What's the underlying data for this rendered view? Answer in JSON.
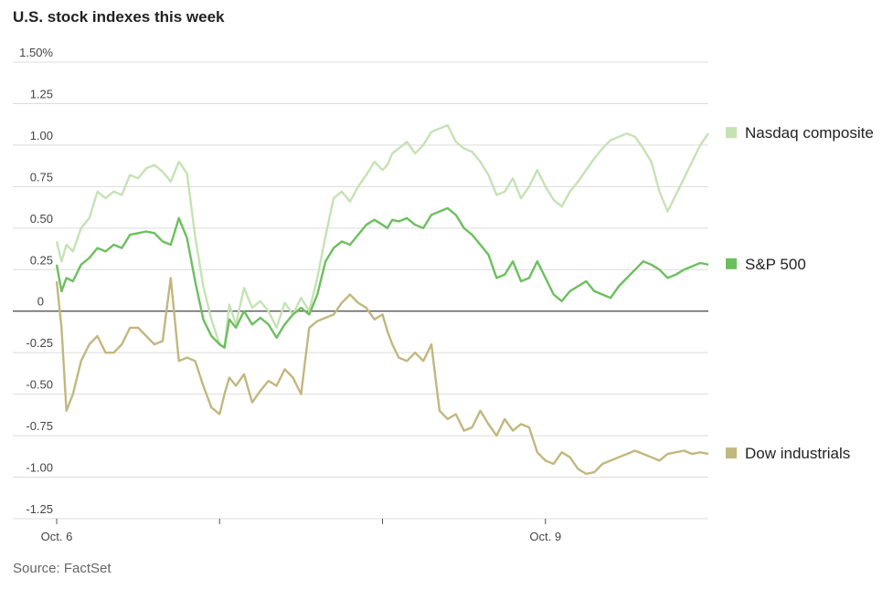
{
  "chart_data": {
    "type": "line",
    "title": "U.S. stock indexes this week",
    "source": "Source: FactSet",
    "xlabel": "",
    "ylabel": "",
    "ylim": [
      -1.25,
      1.5
    ],
    "y_ticks": [
      {
        "value": 1.5,
        "label": "1.50%"
      },
      {
        "value": 1.25,
        "label": "1.25"
      },
      {
        "value": 1.0,
        "label": "1.00"
      },
      {
        "value": 0.75,
        "label": "0.75"
      },
      {
        "value": 0.5,
        "label": "0.50"
      },
      {
        "value": 0.25,
        "label": "0.25"
      },
      {
        "value": 0,
        "label": "0"
      },
      {
        "value": -0.25,
        "label": "-0.25"
      },
      {
        "value": -0.5,
        "label": "-0.50"
      },
      {
        "value": -0.75,
        "label": "-0.75"
      },
      {
        "value": -1.0,
        "label": "-1.00"
      },
      {
        "value": -1.25,
        "label": "-1.25"
      }
    ],
    "x_ticks": [
      {
        "value": 0,
        "label": "Oct. 6"
      },
      {
        "value": 1,
        "label": ""
      },
      {
        "value": 2,
        "label": ""
      },
      {
        "value": 3,
        "label": "Oct. 9"
      }
    ],
    "xlim": [
      0,
      4
    ],
    "series": [
      {
        "name": "Nasdaq composite",
        "color": "#c5e2b5",
        "x": [
          0,
          0.03,
          0.06,
          0.1,
          0.15,
          0.2,
          0.25,
          0.3,
          0.35,
          0.4,
          0.45,
          0.5,
          0.55,
          0.6,
          0.65,
          0.7,
          0.75,
          0.8,
          0.85,
          0.9,
          0.95,
          1.0,
          1.03,
          1.06,
          1.1,
          1.15,
          1.2,
          1.25,
          1.3,
          1.35,
          1.4,
          1.45,
          1.5,
          1.55,
          1.6,
          1.65,
          1.7,
          1.75,
          1.8,
          1.85,
          1.9,
          1.95,
          2.0,
          2.03,
          2.06,
          2.1,
          2.15,
          2.2,
          2.25,
          2.3,
          2.35,
          2.4,
          2.45,
          2.5,
          2.55,
          2.6,
          2.65,
          2.7,
          2.75,
          2.8,
          2.85,
          2.9,
          2.95,
          3.0,
          3.05,
          3.1,
          3.15,
          3.2,
          3.25,
          3.3,
          3.35,
          3.4,
          3.45,
          3.5,
          3.55,
          3.6,
          3.65,
          3.7,
          3.75,
          3.8,
          3.85,
          3.9,
          3.95,
          4.0
        ],
        "y": [
          0.42,
          0.3,
          0.4,
          0.36,
          0.5,
          0.56,
          0.72,
          0.68,
          0.72,
          0.7,
          0.82,
          0.8,
          0.86,
          0.88,
          0.84,
          0.78,
          0.9,
          0.83,
          0.45,
          0.15,
          -0.05,
          -0.2,
          -0.22,
          0.04,
          -0.08,
          0.14,
          0.02,
          0.06,
          0.0,
          -0.1,
          0.05,
          -0.02,
          0.08,
          0.0,
          0.2,
          0.45,
          0.68,
          0.72,
          0.66,
          0.75,
          0.82,
          0.9,
          0.85,
          0.88,
          0.95,
          0.98,
          1.02,
          0.95,
          1.0,
          1.08,
          1.1,
          1.12,
          1.02,
          0.98,
          0.96,
          0.9,
          0.82,
          0.7,
          0.72,
          0.8,
          0.68,
          0.75,
          0.85,
          0.75,
          0.67,
          0.63,
          0.72,
          0.78,
          0.85,
          0.92,
          0.98,
          1.03,
          1.05,
          1.07,
          1.05,
          0.98,
          0.9,
          0.72,
          0.6,
          0.7,
          0.8,
          0.9,
          1.0,
          1.07
        ]
      },
      {
        "name": "S&P 500",
        "color": "#6cbf5e",
        "x": [
          0,
          0.03,
          0.06,
          0.1,
          0.15,
          0.2,
          0.25,
          0.3,
          0.35,
          0.4,
          0.45,
          0.5,
          0.55,
          0.6,
          0.65,
          0.7,
          0.75,
          0.8,
          0.85,
          0.9,
          0.95,
          1.0,
          1.03,
          1.06,
          1.1,
          1.15,
          1.2,
          1.25,
          1.3,
          1.35,
          1.4,
          1.45,
          1.5,
          1.55,
          1.6,
          1.65,
          1.7,
          1.75,
          1.8,
          1.85,
          1.9,
          1.95,
          2.0,
          2.03,
          2.06,
          2.1,
          2.15,
          2.2,
          2.25,
          2.3,
          2.35,
          2.4,
          2.45,
          2.5,
          2.55,
          2.6,
          2.65,
          2.7,
          2.75,
          2.8,
          2.85,
          2.9,
          2.95,
          3.0,
          3.05,
          3.1,
          3.15,
          3.2,
          3.25,
          3.3,
          3.35,
          3.4,
          3.45,
          3.5,
          3.55,
          3.6,
          3.65,
          3.7,
          3.75,
          3.8,
          3.85,
          3.9,
          3.95,
          4.0
        ],
        "y": [
          0.28,
          0.12,
          0.2,
          0.18,
          0.28,
          0.32,
          0.38,
          0.36,
          0.4,
          0.38,
          0.46,
          0.47,
          0.48,
          0.47,
          0.42,
          0.4,
          0.56,
          0.44,
          0.18,
          -0.05,
          -0.15,
          -0.2,
          -0.22,
          -0.05,
          -0.1,
          0.0,
          -0.08,
          -0.04,
          -0.08,
          -0.16,
          -0.08,
          -0.02,
          0.02,
          -0.02,
          0.1,
          0.3,
          0.38,
          0.42,
          0.4,
          0.46,
          0.52,
          0.55,
          0.52,
          0.5,
          0.55,
          0.54,
          0.56,
          0.52,
          0.5,
          0.58,
          0.6,
          0.62,
          0.58,
          0.5,
          0.46,
          0.4,
          0.34,
          0.2,
          0.22,
          0.3,
          0.18,
          0.2,
          0.3,
          0.2,
          0.1,
          0.06,
          0.12,
          0.15,
          0.18,
          0.12,
          0.1,
          0.08,
          0.15,
          0.2,
          0.25,
          0.3,
          0.28,
          0.25,
          0.2,
          0.22,
          0.25,
          0.27,
          0.29,
          0.28
        ]
      },
      {
        "name": "Dow industrials",
        "color": "#c2b77f",
        "x": [
          0,
          0.03,
          0.06,
          0.1,
          0.15,
          0.2,
          0.25,
          0.3,
          0.35,
          0.4,
          0.45,
          0.5,
          0.55,
          0.6,
          0.65,
          0.7,
          0.75,
          0.8,
          0.85,
          0.9,
          0.95,
          1.0,
          1.03,
          1.06,
          1.1,
          1.15,
          1.2,
          1.25,
          1.3,
          1.35,
          1.4,
          1.45,
          1.5,
          1.55,
          1.6,
          1.65,
          1.7,
          1.75,
          1.8,
          1.85,
          1.9,
          1.95,
          2.0,
          2.03,
          2.06,
          2.1,
          2.15,
          2.2,
          2.25,
          2.3,
          2.35,
          2.4,
          2.45,
          2.5,
          2.55,
          2.6,
          2.65,
          2.7,
          2.75,
          2.8,
          2.85,
          2.9,
          2.95,
          3.0,
          3.05,
          3.1,
          3.15,
          3.2,
          3.25,
          3.3,
          3.35,
          3.4,
          3.45,
          3.5,
          3.55,
          3.6,
          3.65,
          3.7,
          3.75,
          3.8,
          3.85,
          3.9,
          3.95,
          4.0
        ],
        "y": [
          0.18,
          -0.1,
          -0.6,
          -0.5,
          -0.3,
          -0.2,
          -0.15,
          -0.25,
          -0.25,
          -0.2,
          -0.1,
          -0.1,
          -0.15,
          -0.2,
          -0.18,
          0.2,
          -0.3,
          -0.28,
          -0.3,
          -0.45,
          -0.58,
          -0.62,
          -0.5,
          -0.4,
          -0.45,
          -0.38,
          -0.55,
          -0.48,
          -0.42,
          -0.45,
          -0.35,
          -0.4,
          -0.5,
          -0.1,
          -0.06,
          -0.04,
          -0.02,
          0.05,
          0.1,
          0.05,
          0.02,
          -0.05,
          -0.02,
          -0.12,
          -0.2,
          -0.28,
          -0.3,
          -0.25,
          -0.3,
          -0.2,
          -0.6,
          -0.65,
          -0.62,
          -0.72,
          -0.7,
          -0.6,
          -0.68,
          -0.75,
          -0.65,
          -0.72,
          -0.68,
          -0.7,
          -0.85,
          -0.9,
          -0.92,
          -0.85,
          -0.88,
          -0.95,
          -0.98,
          -0.97,
          -0.92,
          -0.9,
          -0.88,
          -0.86,
          -0.84,
          -0.86,
          -0.88,
          -0.9,
          -0.86,
          -0.85,
          -0.84,
          -0.86,
          -0.85,
          -0.86
        ]
      }
    ]
  }
}
